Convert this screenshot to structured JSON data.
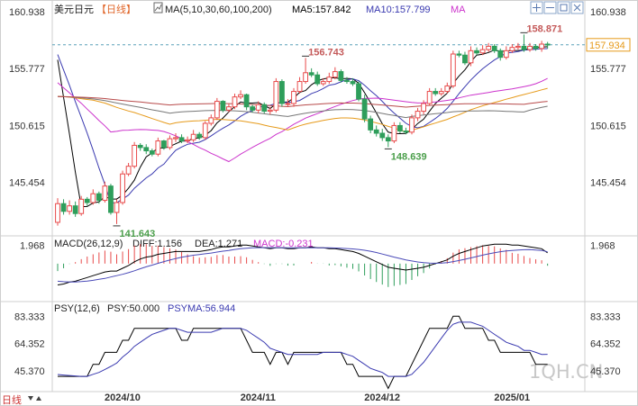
{
  "header": {
    "symbol": "美元日元",
    "period": "【日线】",
    "ma_legend_box": "MA(5,10,30,60,100,200)",
    "ma5_label": "MA5:157.842",
    "ma10_label": "MA10:157.799",
    "ma_tag": "MA"
  },
  "toolbar": [
    "plus-icon",
    "minus-icon",
    "expand-icon",
    "close-icon"
  ],
  "watermark": "1QH.CN",
  "footer_label": "日线",
  "colors": {
    "up": "#e84b4b",
    "down": "#2e9e5b",
    "ma5": "#000000",
    "ma10": "#3a3ab0",
    "ma30": "#cc33cc",
    "ma60": "#e69a1a",
    "ma100": "#777777",
    "ma200": "#b84a4a",
    "dif": "#000000",
    "dea": "#4a4ab8",
    "psy": "#000000",
    "psyma": "#3a3ab0",
    "annotation_high": "#c45a5a",
    "annotation_low": "#4a9e4a",
    "last_price_tag": "#e69a1a"
  },
  "chart_data": [
    {
      "type": "candlestick",
      "title": "美元日元【日线】",
      "x_axis_ticks": [
        "2024/10",
        "2024/11",
        "2024/12",
        "2025/01"
      ],
      "y_axis_ticks": [
        160.938,
        155.777,
        150.615,
        145.454
      ],
      "ylim": [
        140.9,
        161.6
      ],
      "last_price": 157.934,
      "annotations": [
        {
          "label": "158.871",
          "kind": "high"
        },
        {
          "label": "156.743",
          "kind": "high"
        },
        {
          "label": "148.639",
          "kind": "low"
        },
        {
          "label": "141.643",
          "kind": "low"
        }
      ],
      "dates": [
        "2024-09-16",
        "2024-09-17",
        "2024-09-18",
        "2024-09-19",
        "2024-09-20",
        "2024-09-23",
        "2024-09-24",
        "2024-09-25",
        "2024-09-26",
        "2024-09-27",
        "2024-09-30",
        "2024-10-01",
        "2024-10-02",
        "2024-10-03",
        "2024-10-04",
        "2024-10-07",
        "2024-10-08",
        "2024-10-09",
        "2024-10-10",
        "2024-10-11",
        "2024-10-14",
        "2024-10-15",
        "2024-10-16",
        "2024-10-17",
        "2024-10-18",
        "2024-10-21",
        "2024-10-22",
        "2024-10-23",
        "2024-10-24",
        "2024-10-25",
        "2024-10-28",
        "2024-10-29",
        "2024-10-30",
        "2024-10-31",
        "2024-11-01",
        "2024-11-04",
        "2024-11-05",
        "2024-11-06",
        "2024-11-07",
        "2024-11-08",
        "2024-11-11",
        "2024-11-12",
        "2024-11-13",
        "2024-11-14",
        "2024-11-15",
        "2024-11-18",
        "2024-11-19",
        "2024-11-20",
        "2024-11-21",
        "2024-11-22",
        "2024-11-25",
        "2024-11-26",
        "2024-11-27",
        "2024-11-28",
        "2024-11-29",
        "2024-12-02",
        "2024-12-03",
        "2024-12-04",
        "2024-12-05",
        "2024-12-06",
        "2024-12-09",
        "2024-12-10",
        "2024-12-11",
        "2024-12-12",
        "2024-12-13",
        "2024-12-16",
        "2024-12-17",
        "2024-12-18",
        "2024-12-19",
        "2024-12-20",
        "2024-12-23",
        "2024-12-24",
        "2024-12-25",
        "2024-12-26",
        "2024-12-27",
        "2024-12-30",
        "2024-12-31",
        "2025-01-01",
        "2025-01-02",
        "2025-01-03",
        "2025-01-06",
        "2025-01-07",
        "2025-01-08",
        "2025-01-09"
      ],
      "open": [
        141.8,
        143.5,
        142.8,
        143.3,
        142.6,
        143.9,
        143.6,
        144.4,
        143.8,
        145.1,
        142.7,
        143.6,
        146.2,
        146.9,
        148.8,
        148.6,
        148.3,
        148.0,
        149.2,
        148.6,
        149.4,
        149.5,
        149.2,
        149.3,
        149.8,
        149.5,
        150.8,
        151.3,
        152.8,
        152.0,
        152.3,
        153.2,
        153.4,
        152.3,
        152.0,
        152.5,
        151.9,
        152.0,
        154.6,
        152.6,
        152.6,
        153.7,
        154.6,
        155.4,
        155.2,
        154.4,
        154.6,
        155.0,
        155.5,
        154.7,
        154.6,
        154.4,
        153.0,
        151.2,
        150.2,
        149.9,
        149.5,
        149.2,
        150.6,
        150.1,
        150.0,
        151.3,
        151.9,
        152.6,
        153.7,
        153.5,
        153.7,
        154.2,
        157.1,
        157.0,
        156.3,
        157.4,
        157.2,
        157.5,
        157.8,
        157.4,
        156.8,
        157.4,
        157.7,
        157.8,
        157.5,
        157.8,
        157.6,
        158.0
      ],
      "close": [
        143.5,
        142.8,
        143.3,
        142.6,
        143.9,
        143.6,
        144.4,
        143.8,
        145.1,
        142.7,
        143.6,
        146.2,
        146.9,
        148.8,
        148.6,
        148.3,
        148.0,
        149.2,
        148.6,
        149.4,
        149.5,
        149.2,
        149.3,
        149.8,
        149.5,
        150.8,
        151.3,
        152.8,
        152.0,
        152.3,
        153.2,
        153.4,
        152.3,
        152.0,
        152.5,
        151.9,
        152.0,
        154.6,
        152.6,
        152.6,
        153.7,
        154.6,
        155.4,
        155.2,
        154.4,
        154.6,
        155.0,
        155.5,
        154.7,
        154.6,
        154.4,
        153.0,
        151.2,
        150.2,
        149.9,
        149.5,
        149.2,
        150.6,
        150.1,
        150.0,
        151.3,
        151.9,
        152.6,
        153.7,
        153.5,
        153.7,
        154.2,
        157.1,
        157.0,
        156.3,
        157.4,
        157.2,
        157.5,
        157.8,
        157.4,
        156.8,
        157.4,
        157.7,
        157.8,
        157.5,
        157.8,
        157.6,
        158.0,
        157.934
      ],
      "high": [
        144.0,
        143.9,
        143.8,
        143.7,
        144.2,
        144.1,
        144.8,
        144.6,
        145.5,
        145.3,
        143.9,
        146.5,
        147.2,
        149.1,
        149.0,
        148.9,
        148.5,
        149.5,
        149.3,
        149.7,
        149.9,
        149.8,
        149.6,
        150.2,
        150.0,
        151.0,
        151.6,
        153.1,
        152.9,
        152.6,
        153.5,
        153.8,
        153.5,
        152.5,
        152.8,
        152.7,
        152.3,
        154.9,
        154.8,
        153.0,
        154.0,
        155.0,
        156.743,
        155.8,
        155.5,
        154.9,
        155.4,
        155.9,
        155.7,
        155.0,
        154.9,
        154.6,
        153.4,
        151.5,
        150.6,
        150.3,
        149.8,
        150.9,
        150.9,
        150.4,
        151.6,
        152.2,
        152.9,
        154.0,
        154.0,
        154.0,
        154.5,
        157.4,
        157.4,
        157.3,
        157.8,
        157.7,
        157.9,
        158.1,
        158.0,
        157.6,
        157.8,
        158.0,
        158.1,
        158.871,
        158.1,
        158.0,
        158.3,
        158.2
      ],
      "low": [
        141.5,
        142.5,
        142.5,
        142.3,
        142.4,
        143.3,
        143.4,
        143.5,
        143.6,
        142.5,
        141.643,
        143.4,
        146.0,
        146.7,
        148.3,
        148.0,
        147.8,
        147.8,
        148.4,
        148.4,
        149.1,
        149.0,
        149.0,
        149.1,
        149.3,
        149.3,
        150.6,
        151.1,
        151.8,
        151.8,
        152.1,
        153.0,
        152.0,
        151.8,
        151.7,
        151.7,
        151.6,
        151.8,
        152.3,
        152.3,
        152.3,
        153.5,
        154.4,
        155.0,
        154.2,
        154.2,
        154.4,
        154.8,
        154.5,
        154.4,
        154.2,
        152.8,
        150.9,
        149.9,
        149.6,
        149.2,
        148.639,
        149.0,
        149.9,
        149.8,
        149.8,
        151.0,
        151.6,
        152.4,
        153.3,
        153.3,
        153.5,
        154.0,
        156.8,
        156.1,
        156.0,
        157.0,
        157.0,
        157.3,
        157.2,
        156.5,
        156.6,
        157.2,
        157.5,
        157.3,
        157.3,
        157.4,
        157.3,
        157.6
      ],
      "ma_series": [
        {
          "name": "MA5",
          "last": 157.842
        },
        {
          "name": "MA10",
          "last": 157.799
        },
        {
          "name": "MA30"
        },
        {
          "name": "MA60"
        },
        {
          "name": "MA100"
        },
        {
          "name": "MA200"
        }
      ]
    },
    {
      "type": "macd",
      "title": "MACD(26,12,9)",
      "labels": {
        "dif": "DIFF:1.156",
        "dea": "DEA:1.271",
        "macd": "MACD:-0.231"
      },
      "y_axis_ticks": [
        1.968
      ],
      "ylim": [
        -3.8,
        2.6
      ],
      "dif": [
        -2.3,
        -2.2,
        -2.0,
        -1.9,
        -1.7,
        -1.5,
        -1.3,
        -1.1,
        -0.9,
        -0.8,
        -0.8,
        -0.5,
        -0.2,
        0.2,
        0.5,
        0.7,
        0.8,
        1.0,
        1.1,
        1.2,
        1.3,
        1.3,
        1.3,
        1.3,
        1.3,
        1.4,
        1.5,
        1.7,
        1.8,
        1.8,
        1.9,
        2.0,
        2.0,
        1.9,
        1.8,
        1.7,
        1.6,
        1.7,
        1.7,
        1.6,
        1.6,
        1.7,
        1.7,
        1.8,
        1.7,
        1.7,
        1.6,
        1.6,
        1.5,
        1.4,
        1.3,
        1.1,
        0.8,
        0.5,
        0.2,
        -0.1,
        -0.4,
        -0.5,
        -0.6,
        -0.7,
        -0.6,
        -0.5,
        -0.4,
        -0.2,
        0.0,
        0.2,
        0.4,
        0.8,
        1.1,
        1.3,
        1.5,
        1.7,
        1.9,
        2.0,
        2.1,
        2.1,
        2.1,
        2.0,
        2.0,
        1.9,
        1.8,
        1.7,
        1.6,
        1.156
      ],
      "dea": [
        -1.9,
        -1.95,
        -1.98,
        -1.98,
        -1.94,
        -1.88,
        -1.8,
        -1.7,
        -1.6,
        -1.44,
        -1.3,
        -1.15,
        -0.98,
        -0.77,
        -0.55,
        -0.35,
        -0.16,
        0.03,
        0.21,
        0.38,
        0.54,
        0.68,
        0.8,
        0.9,
        0.98,
        1.06,
        1.14,
        1.24,
        1.34,
        1.42,
        1.52,
        1.6,
        1.66,
        1.7,
        1.72,
        1.72,
        1.72,
        1.72,
        1.72,
        1.71,
        1.7,
        1.7,
        1.7,
        1.71,
        1.71,
        1.71,
        1.7,
        1.68,
        1.65,
        1.62,
        1.58,
        1.52,
        1.44,
        1.33,
        1.19,
        1.03,
        0.86,
        0.7,
        0.55,
        0.4,
        0.28,
        0.18,
        0.11,
        0.06,
        0.04,
        0.06,
        0.11,
        0.21,
        0.33,
        0.47,
        0.61,
        0.76,
        0.91,
        1.05,
        1.17,
        1.28,
        1.36,
        1.42,
        1.47,
        1.49,
        1.5,
        1.47,
        1.42,
        1.271
      ]
    },
    {
      "type": "line",
      "title": "PSY(12,6)",
      "labels": {
        "psy": "PSY:50.000",
        "psyma": "PSYMA:56.944"
      },
      "y_axis_ticks": [
        83.333,
        64.352,
        45.37
      ],
      "ylim": [
        33,
        91
      ],
      "psy": [
        41.7,
        41.7,
        41.7,
        41.7,
        41.7,
        41.7,
        50.0,
        50.0,
        58.3,
        58.3,
        58.3,
        66.7,
        66.7,
        75.0,
        75.0,
        75.0,
        75.0,
        75.0,
        75.0,
        75.0,
        75.0,
        66.7,
        66.7,
        75.0,
        75.0,
        75.0,
        75.0,
        75.0,
        75.0,
        75.0,
        75.0,
        75.0,
        66.7,
        58.3,
        58.3,
        58.3,
        50.0,
        58.3,
        58.3,
        50.0,
        58.3,
        58.3,
        58.3,
        58.3,
        58.3,
        58.3,
        58.3,
        58.3,
        58.3,
        50.0,
        50.0,
        41.7,
        41.7,
        41.7,
        41.7,
        41.7,
        33.3,
        41.7,
        41.7,
        41.7,
        50.0,
        58.3,
        66.7,
        75.0,
        75.0,
        75.0,
        75.0,
        83.3,
        83.3,
        75.0,
        75.0,
        75.0,
        75.0,
        66.7,
        66.7,
        58.3,
        58.3,
        58.3,
        58.3,
        58.3,
        58.3,
        50.0,
        50.0,
        50.0
      ],
      "psyma": [
        43.0,
        42.6,
        42.3,
        42.0,
        41.7,
        41.7,
        43.1,
        44.4,
        46.5,
        48.6,
        50.9,
        55.1,
        58.3,
        62.5,
        65.3,
        68.1,
        70.8,
        72.2,
        73.6,
        75.0,
        75.0,
        73.6,
        72.2,
        72.2,
        72.2,
        72.2,
        72.2,
        73.6,
        75.0,
        75.0,
        75.0,
        75.0,
        73.6,
        70.8,
        68.1,
        65.3,
        61.1,
        59.7,
        58.3,
        56.9,
        56.9,
        56.9,
        56.9,
        56.9,
        56.9,
        58.3,
        58.3,
        58.3,
        58.3,
        56.9,
        55.6,
        52.8,
        50.0,
        47.2,
        45.8,
        44.4,
        41.7,
        41.7,
        41.7,
        41.7,
        43.1,
        47.2,
        51.4,
        56.9,
        62.5,
        68.1,
        73.6,
        77.8,
        79.2,
        79.2,
        79.2,
        77.8,
        76.4,
        73.6,
        70.8,
        68.1,
        65.3,
        63.9,
        62.5,
        59.7,
        59.7,
        58.3,
        56.9,
        56.944
      ]
    }
  ]
}
